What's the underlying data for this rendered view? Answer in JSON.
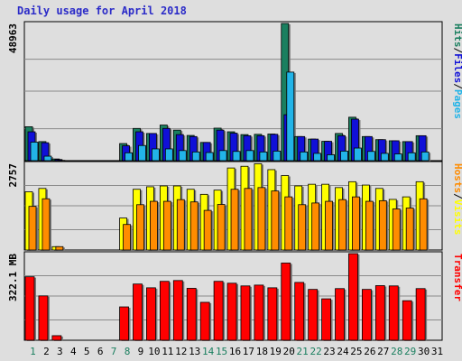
{
  "title": "Daily usage for April 2018",
  "colors": {
    "background": "#dedede",
    "title": "#2b2bc8",
    "hits": "#1a7f5f",
    "files": "#1010d8",
    "pages": "#22b4e8",
    "visits": "#ffff00",
    "hosts": "#ff8c00",
    "transfer": "#ff0000",
    "weekend_label": "#1a7f5f",
    "weekday_label": "#000000"
  },
  "chart_data": [
    {
      "type": "bar",
      "title": "Hits/Files/Pages",
      "ymax_label": "48963",
      "ymax": 48963,
      "legend": [
        "Hits",
        "Files",
        "Pages"
      ],
      "categories": [
        "1",
        "2",
        "3",
        "4",
        "5",
        "6",
        "7",
        "8",
        "9",
        "10",
        "11",
        "12",
        "13",
        "14",
        "15",
        "16",
        "17",
        "18",
        "19",
        "20",
        "21",
        "22",
        "23",
        "24",
        "25",
        "26",
        "27",
        "28",
        "29",
        "30",
        "31"
      ],
      "series": [
        {
          "name": "Hits",
          "values": [
            12100,
            6800,
            600,
            0,
            0,
            0,
            0,
            6100,
            11500,
            9700,
            12700,
            10900,
            9000,
            6500,
            11600,
            10300,
            9300,
            9400,
            9500,
            48963,
            8600,
            7700,
            6900,
            9700,
            15500,
            8600,
            7500,
            7100,
            6800,
            8900,
            0
          ]
        },
        {
          "name": "Files",
          "values": [
            10300,
            6400,
            400,
            0,
            0,
            0,
            0,
            5300,
            10300,
            9700,
            11500,
            9300,
            8600,
            6500,
            10900,
            9800,
            8900,
            8900,
            9400,
            16400,
            8600,
            7700,
            6900,
            8900,
            14800,
            8600,
            7500,
            7100,
            6800,
            8900,
            0
          ]
        },
        {
          "name": "Pages",
          "values": [
            6600,
            1600,
            100,
            0,
            0,
            0,
            0,
            2800,
            5400,
            4200,
            4200,
            3600,
            3100,
            2900,
            3600,
            3300,
            3600,
            3100,
            3400,
            31600,
            3100,
            2600,
            2100,
            3400,
            4500,
            3300,
            2600,
            2400,
            2800,
            3100,
            0
          ]
        }
      ]
    },
    {
      "type": "bar",
      "title": "Hosts/Visits",
      "ymax_label": "2757",
      "ymax": 2757,
      "legend": [
        "Hosts",
        "Visits"
      ],
      "categories": [
        "1",
        "2",
        "3",
        "4",
        "5",
        "6",
        "7",
        "8",
        "9",
        "10",
        "11",
        "12",
        "13",
        "14",
        "15",
        "16",
        "17",
        "18",
        "19",
        "20",
        "21",
        "22",
        "23",
        "24",
        "25",
        "26",
        "27",
        "28",
        "29",
        "30",
        "31"
      ],
      "series": [
        {
          "name": "Visits",
          "values": [
            1852,
            1959,
            107,
            0,
            0,
            0,
            0,
            1018,
            1932,
            2012,
            2039,
            2039,
            1932,
            1771,
            1905,
            2610,
            2664,
            2745,
            2557,
            2369,
            2039,
            2092,
            2092,
            1986,
            2173,
            2066,
            1959,
            1610,
            1691,
            2173,
            0
          ]
        },
        {
          "name": "Hosts",
          "values": [
            1388,
            1630,
            107,
            0,
            0,
            0,
            0,
            812,
            1442,
            1549,
            1549,
            1603,
            1530,
            1261,
            1449,
            1932,
            1959,
            1986,
            1878,
            1691,
            1442,
            1496,
            1549,
            1603,
            1690,
            1549,
            1569,
            1308,
            1335,
            1629,
            0
          ]
        }
      ]
    },
    {
      "type": "bar",
      "title": "Transfer",
      "ymax_label": "322.1 MB",
      "ymax": 322.1,
      "legend": [
        "Transfer"
      ],
      "categories": [
        "1",
        "2",
        "3",
        "4",
        "5",
        "6",
        "7",
        "8",
        "9",
        "10",
        "11",
        "12",
        "13",
        "14",
        "15",
        "16",
        "17",
        "18",
        "19",
        "20",
        "21",
        "22",
        "23",
        "24",
        "25",
        "26",
        "27",
        "28",
        "29",
        "30",
        "31"
      ],
      "series": [
        {
          "name": "Transfer",
          "values": [
            236,
            165,
            17,
            0,
            0,
            0,
            0,
            124,
            209,
            195,
            219,
            222,
            193,
            141,
            219,
            212,
            202,
            205,
            195,
            287,
            215,
            189,
            154,
            192,
            322,
            189,
            203,
            202,
            147,
            192,
            0
          ]
        }
      ]
    }
  ],
  "weekend_days": [
    1,
    7,
    8,
    14,
    15,
    21,
    22,
    28,
    29
  ]
}
